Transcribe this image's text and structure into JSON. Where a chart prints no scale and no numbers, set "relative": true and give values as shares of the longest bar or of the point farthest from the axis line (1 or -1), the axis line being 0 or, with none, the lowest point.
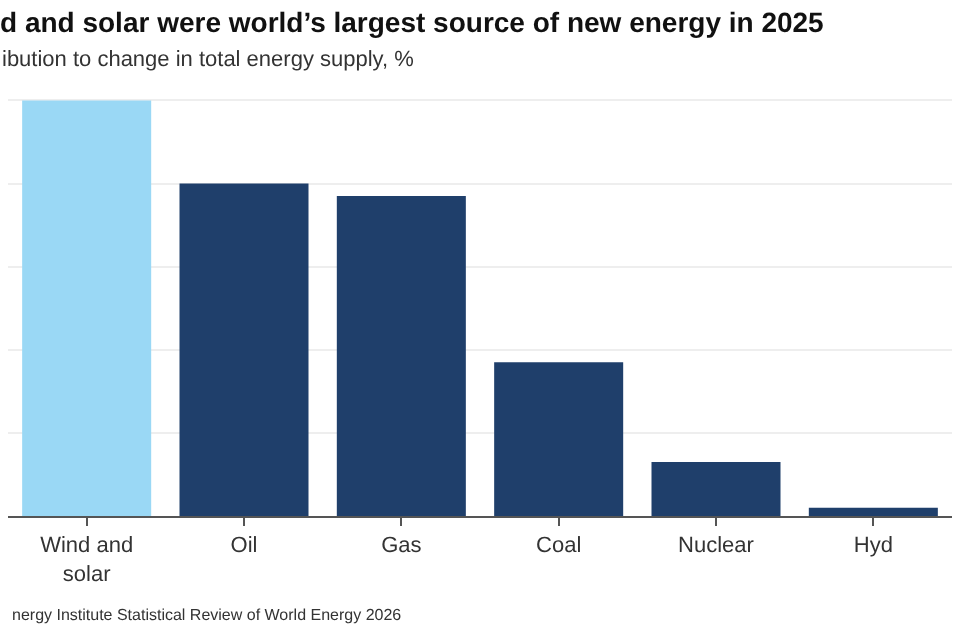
{
  "chart_data": {
    "type": "bar",
    "title": "d and solar were world’s largest source of new energy in 2025",
    "subtitle": "ibution to change in total energy supply, %",
    "categories": [
      "Wind and solar",
      "Oil",
      "Gas",
      "Coal",
      "Nuclear",
      "Hyd"
    ],
    "values": [
      1,
      0.8,
      0.77,
      0.37,
      0.13,
      0.02
    ],
    "colors": [
      "#9ad8f5",
      "#1f3f6b",
      "#1f3f6b",
      "#1f3f6b",
      "#1f3f6b",
      "#1f3f6b"
    ],
    "relative": true,
    "grid": "y",
    "annotations": [
      "nergy Institute Statistical Review of World Energy 2026"
    ]
  }
}
